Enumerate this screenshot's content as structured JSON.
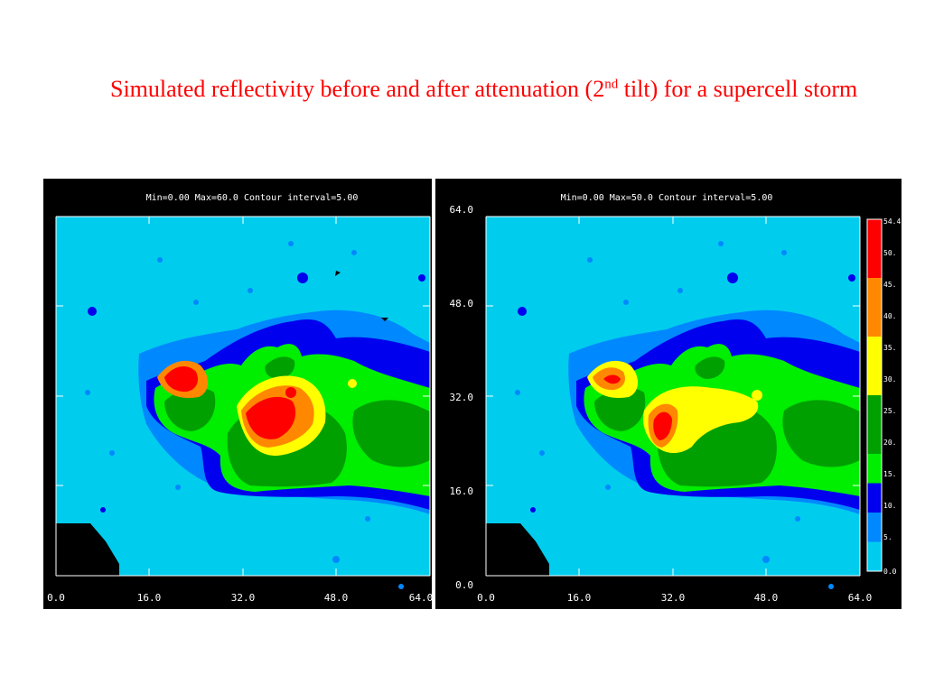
{
  "slide": {
    "title_pre": "Simulated reflectivity before and after attenuation (2",
    "title_sup": "nd",
    "title_post": " tilt) for a supercell storm"
  },
  "left_panel": {
    "header": "Min=0.00 Max=60.0 Contour interval=5.00",
    "x_ticks": [
      "0.0",
      "16.0",
      "32.0",
      "48.0",
      "64.0"
    ]
  },
  "right_panel": {
    "header": "Min=0.00 Max=50.0 Contour interval=5.00",
    "x_ticks": [
      "0.0",
      "16.0",
      "32.0",
      "48.0",
      "64.0"
    ],
    "y_ticks": [
      "0.0",
      "16.0",
      "32.0",
      "48.0",
      "64.0"
    ]
  },
  "colorbar": {
    "labels": [
      "54.4",
      "50.",
      "45.",
      "40.",
      "35.",
      "30.",
      "25.",
      "20.",
      "15.",
      "10.",
      "5.",
      "0.0"
    ],
    "colors": [
      "#ff0000",
      "#ff0000",
      "#ff8800",
      "#ff8800",
      "#ffff00",
      "#ffff00",
      "#00a000",
      "#00a000",
      "#00ee00",
      "#0000ee",
      "#0088ff",
      "#00ccee"
    ]
  },
  "colors": {
    "title_text": "#ff0000",
    "background_field": "#00ccee",
    "dbz_5": "#0088ff",
    "dbz_10": "#0000ee",
    "dbz_15": "#00ee00",
    "dbz_25": "#00a000",
    "dbz_30": "#ffff00",
    "dbz_40": "#ff8800",
    "dbz_50": "#ff0000",
    "dbz_55": "#dd0000"
  }
}
